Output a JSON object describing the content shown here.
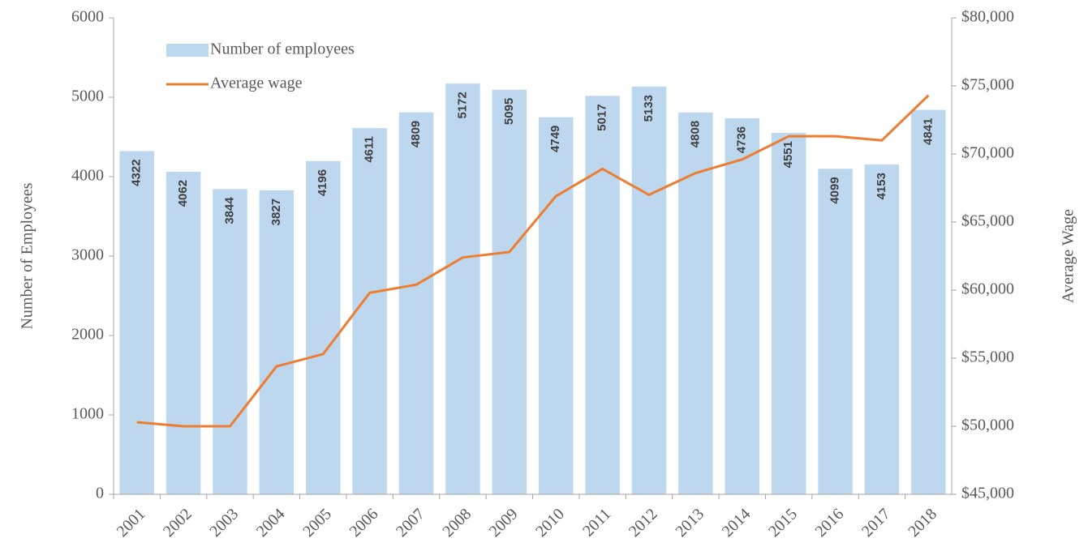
{
  "chart_data": {
    "type": "bar_line",
    "categories": [
      "2001",
      "2002",
      "2003",
      "2004",
      "2005",
      "2006",
      "2007",
      "2008",
      "2009",
      "2010",
      "2011",
      "2012",
      "2013",
      "2014",
      "2015",
      "2016",
      "2017",
      "2018"
    ],
    "y_label": "Number of Employees",
    "y2_label": "Average Wage",
    "series": [
      {
        "name": "Number of employees",
        "type": "bar",
        "color": "#bdd7ee",
        "values": [
          4322,
          4062,
          3844,
          3827,
          4196,
          4611,
          4809,
          5172,
          5095,
          4749,
          5017,
          5133,
          4808,
          4736,
          4551,
          4099,
          4153,
          4841
        ]
      },
      {
        "name": "Average wage",
        "type": "line",
        "axis": "y2",
        "color": "#ed7d31",
        "values": [
          50300,
          50000,
          50000,
          54400,
          55300,
          59800,
          60400,
          62400,
          62800,
          66900,
          68900,
          67000,
          68600,
          69600,
          71300,
          71300,
          71000,
          74300
        ]
      }
    ],
    "ylim": [
      0,
      6000
    ],
    "yticks": [
      0,
      1000,
      2000,
      3000,
      4000,
      5000,
      6000
    ],
    "y2lim": [
      45000,
      80000
    ],
    "y2ticks": [
      {
        "value": 45000,
        "label": "$45,000"
      },
      {
        "value": 50000,
        "label": "$50,000"
      },
      {
        "value": 55000,
        "label": "$55,000"
      },
      {
        "value": 60000,
        "label": "$60,000"
      },
      {
        "value": 65000,
        "label": "$65,000"
      },
      {
        "value": 70000,
        "label": "$70,000"
      },
      {
        "value": 75000,
        "label": "$75,000"
      },
      {
        "value": 80000,
        "label": "$80,000"
      }
    ],
    "legend": "upper left"
  }
}
